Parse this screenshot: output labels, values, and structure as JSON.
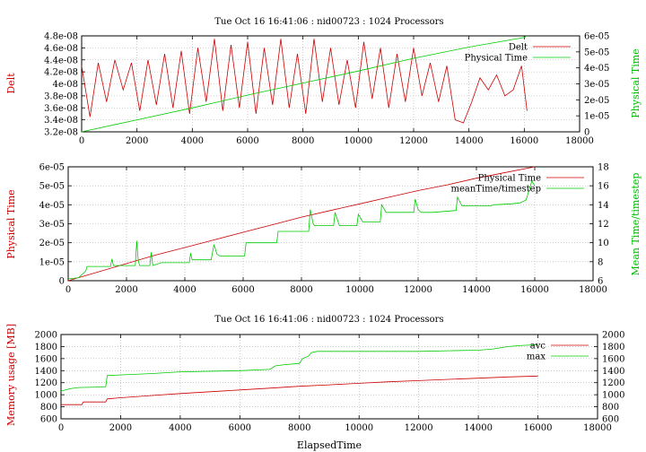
{
  "colors": {
    "red": "#cc0000",
    "green": "#00cc00",
    "grid": "#aaaaaa"
  },
  "chart_data": [
    {
      "type": "line",
      "title": "Tue Oct 16 16:41:06 : nid00723 : 1024 Processors",
      "ylabel_left": "Delt",
      "ylabel_right": "Physical Time",
      "xlim": [
        0,
        18000
      ],
      "xticks": [
        0,
        2000,
        4000,
        6000,
        8000,
        10000,
        12000,
        14000,
        16000,
        18000
      ],
      "ylim_left": [
        3.2e-08,
        4.8e-08
      ],
      "yticks_left": [
        "3.2e-08",
        "3.4e-08",
        "3.6e-08",
        "3.8e-08",
        "4e-08",
        "4.2e-08",
        "4.4e-08",
        "4.6e-08",
        "4.8e-08"
      ],
      "ylim_right": [
        0,
        6e-05
      ],
      "yticks_right": [
        "0",
        "1e-05",
        "2e-05",
        "3e-05",
        "4e-05",
        "5e-05",
        "6e-05"
      ],
      "legend": "top-right",
      "series": [
        {
          "name": "Delt",
          "color": "red",
          "axis": "left",
          "x": [
            0,
            300,
            600,
            900,
            1200,
            1500,
            1800,
            2100,
            2400,
            2700,
            3000,
            3300,
            3600,
            3900,
            4200,
            4500,
            4800,
            5100,
            5400,
            5700,
            6000,
            6300,
            6600,
            6900,
            7200,
            7500,
            7800,
            8100,
            8400,
            8700,
            9000,
            9300,
            9600,
            9900,
            10200,
            10500,
            10800,
            11100,
            11400,
            11700,
            12000,
            12300,
            12600,
            12900,
            13200,
            13500,
            13800,
            14100,
            14400,
            14700,
            15000,
            15300,
            15600,
            15900,
            16100
          ],
          "values": [
            4.3e-08,
            3.45e-08,
            4.35e-08,
            3.7e-08,
            4.4e-08,
            3.9e-08,
            4.35e-08,
            3.55e-08,
            4.4e-08,
            3.65e-08,
            4.5e-08,
            3.6e-08,
            4.55e-08,
            3.5e-08,
            4.6e-08,
            3.7e-08,
            4.75e-08,
            3.55e-08,
            4.65e-08,
            3.6e-08,
            4.7e-08,
            3.5e-08,
            4.6e-08,
            3.65e-08,
            4.75e-08,
            3.6e-08,
            4.5e-08,
            3.5e-08,
            4.75e-08,
            3.7e-08,
            4.6e-08,
            3.65e-08,
            4.4e-08,
            3.6e-08,
            4.7e-08,
            3.75e-08,
            4.6e-08,
            3.6e-08,
            4.5e-08,
            3.7e-08,
            4.6e-08,
            3.8e-08,
            4.35e-08,
            3.7e-08,
            4.3e-08,
            3.4e-08,
            3.35e-08,
            3.7e-08,
            4.1e-08,
            3.9e-08,
            4.15e-08,
            3.8e-08,
            3.9e-08,
            4.3e-08,
            3.55e-08
          ]
        },
        {
          "name": "Physical Time",
          "color": "green",
          "axis": "right",
          "x": [
            0,
            2000,
            4000,
            6000,
            8000,
            10000,
            12000,
            14000,
            16000,
            16100
          ],
          "values": [
            0,
            7.5e-06,
            1.5e-05,
            2.3e-05,
            3.05e-05,
            3.8e-05,
            4.6e-05,
            5.3e-05,
            5.9e-05,
            6e-05
          ]
        }
      ]
    },
    {
      "type": "line",
      "title": "",
      "ylabel_left": "Physical Time",
      "ylabel_right": "Mean Time/timestep",
      "xlim": [
        0,
        18000
      ],
      "xticks": [
        0,
        2000,
        4000,
        6000,
        8000,
        10000,
        12000,
        14000,
        16000,
        18000
      ],
      "ylim_left": [
        0,
        6e-05
      ],
      "yticks_left": [
        "0",
        "1e-05",
        "2e-05",
        "3e-05",
        "4e-05",
        "5e-05",
        "6e-05"
      ],
      "ylim_right": [
        6,
        18
      ],
      "yticks_right": [
        "6",
        "8",
        "10",
        "12",
        "14",
        "16",
        "18"
      ],
      "legend": "top-right",
      "series": [
        {
          "name": "Physical Time",
          "color": "red",
          "axis": "left",
          "x": [
            0,
            1000,
            2000,
            3000,
            4000,
            5000,
            6000,
            7000,
            8000,
            9000,
            10000,
            11000,
            12000,
            13000,
            14000,
            15000,
            16000
          ],
          "values": [
            0,
            4.5e-06,
            9e-06,
            1.35e-05,
            1.75e-05,
            2.15e-05,
            2.55e-05,
            2.95e-05,
            3.35e-05,
            3.7e-05,
            4.05e-05,
            4.4e-05,
            4.75e-05,
            5.05e-05,
            5.4e-05,
            5.7e-05,
            6e-05
          ]
        },
        {
          "name": "meanTime/timestep",
          "color": "green",
          "axis": "right",
          "x": [
            0,
            350,
            600,
            650,
            1450,
            1500,
            1550,
            2300,
            2350,
            2400,
            2450,
            2800,
            2850,
            2900,
            3200,
            4150,
            4200,
            4250,
            4900,
            5000,
            5100,
            5200,
            6050,
            6100,
            7150,
            7200,
            8250,
            8300,
            8400,
            8450,
            9100,
            9150,
            9300,
            9900,
            9950,
            10100,
            10700,
            10750,
            10900,
            11850,
            11900,
            12000,
            12100,
            12500,
            13300,
            13350,
            13500,
            14500,
            14600,
            15200,
            15500,
            15700,
            15900,
            16000
          ],
          "values": [
            6.2,
            6.3,
            7.0,
            7.5,
            7.5,
            8.3,
            7.6,
            7.6,
            10.2,
            8.2,
            7.6,
            7.6,
            9.0,
            7.6,
            7.9,
            7.9,
            8.9,
            8.2,
            8.2,
            9.8,
            8.8,
            8.6,
            8.6,
            10.0,
            10.0,
            11.2,
            11.2,
            13.5,
            12.0,
            11.8,
            11.8,
            13.2,
            11.8,
            11.8,
            13.0,
            12.2,
            12.2,
            14.0,
            13.2,
            13.2,
            14.6,
            13.5,
            13.2,
            13.2,
            13.4,
            14.8,
            13.9,
            13.9,
            14.0,
            14.1,
            14.2,
            14.5,
            16.5,
            16.0
          ]
        }
      ]
    },
    {
      "type": "line",
      "title": "Tue Oct 16 16:41:06 : nid00723 : 1024 Processors",
      "xlabel": "ElapsedTime",
      "ylabel_left": "Memory usage [MB]",
      "xlim": [
        0,
        18000
      ],
      "xticks": [
        0,
        2000,
        4000,
        6000,
        8000,
        10000,
        12000,
        14000,
        16000,
        18000
      ],
      "ylim_left": [
        600,
        2000
      ],
      "yticks_left": [
        "600",
        "800",
        "1000",
        "1200",
        "1400",
        "1600",
        "1800",
        "2000"
      ],
      "ylim_right": [
        600,
        2000
      ],
      "yticks_right": [
        "600",
        "800",
        "1000",
        "1200",
        "1400",
        "1600",
        "1800",
        "2000"
      ],
      "legend": "top-right",
      "series": [
        {
          "name": "avc",
          "color": "red",
          "axis": "left",
          "x": [
            0,
            700,
            750,
            1500,
            1550,
            2000,
            3000,
            4000,
            5000,
            6000,
            7000,
            8000,
            9000,
            10000,
            11000,
            12000,
            13000,
            14000,
            15000,
            16000
          ],
          "values": [
            835,
            835,
            880,
            880,
            930,
            950,
            985,
            1020,
            1050,
            1080,
            1110,
            1140,
            1165,
            1190,
            1215,
            1235,
            1255,
            1275,
            1295,
            1310
          ]
        },
        {
          "name": "max",
          "color": "green",
          "axis": "left",
          "x": [
            0,
            300,
            600,
            1500,
            1550,
            3000,
            4000,
            6000,
            7000,
            7200,
            7500,
            8000,
            8100,
            8300,
            8400,
            8600,
            12000,
            13000,
            14000,
            14500,
            15000,
            15500,
            16000
          ],
          "values": [
            1060,
            1100,
            1120,
            1130,
            1320,
            1350,
            1380,
            1400,
            1420,
            1480,
            1500,
            1520,
            1600,
            1640,
            1700,
            1720,
            1720,
            1730,
            1740,
            1760,
            1800,
            1820,
            1830
          ]
        }
      ]
    }
  ]
}
